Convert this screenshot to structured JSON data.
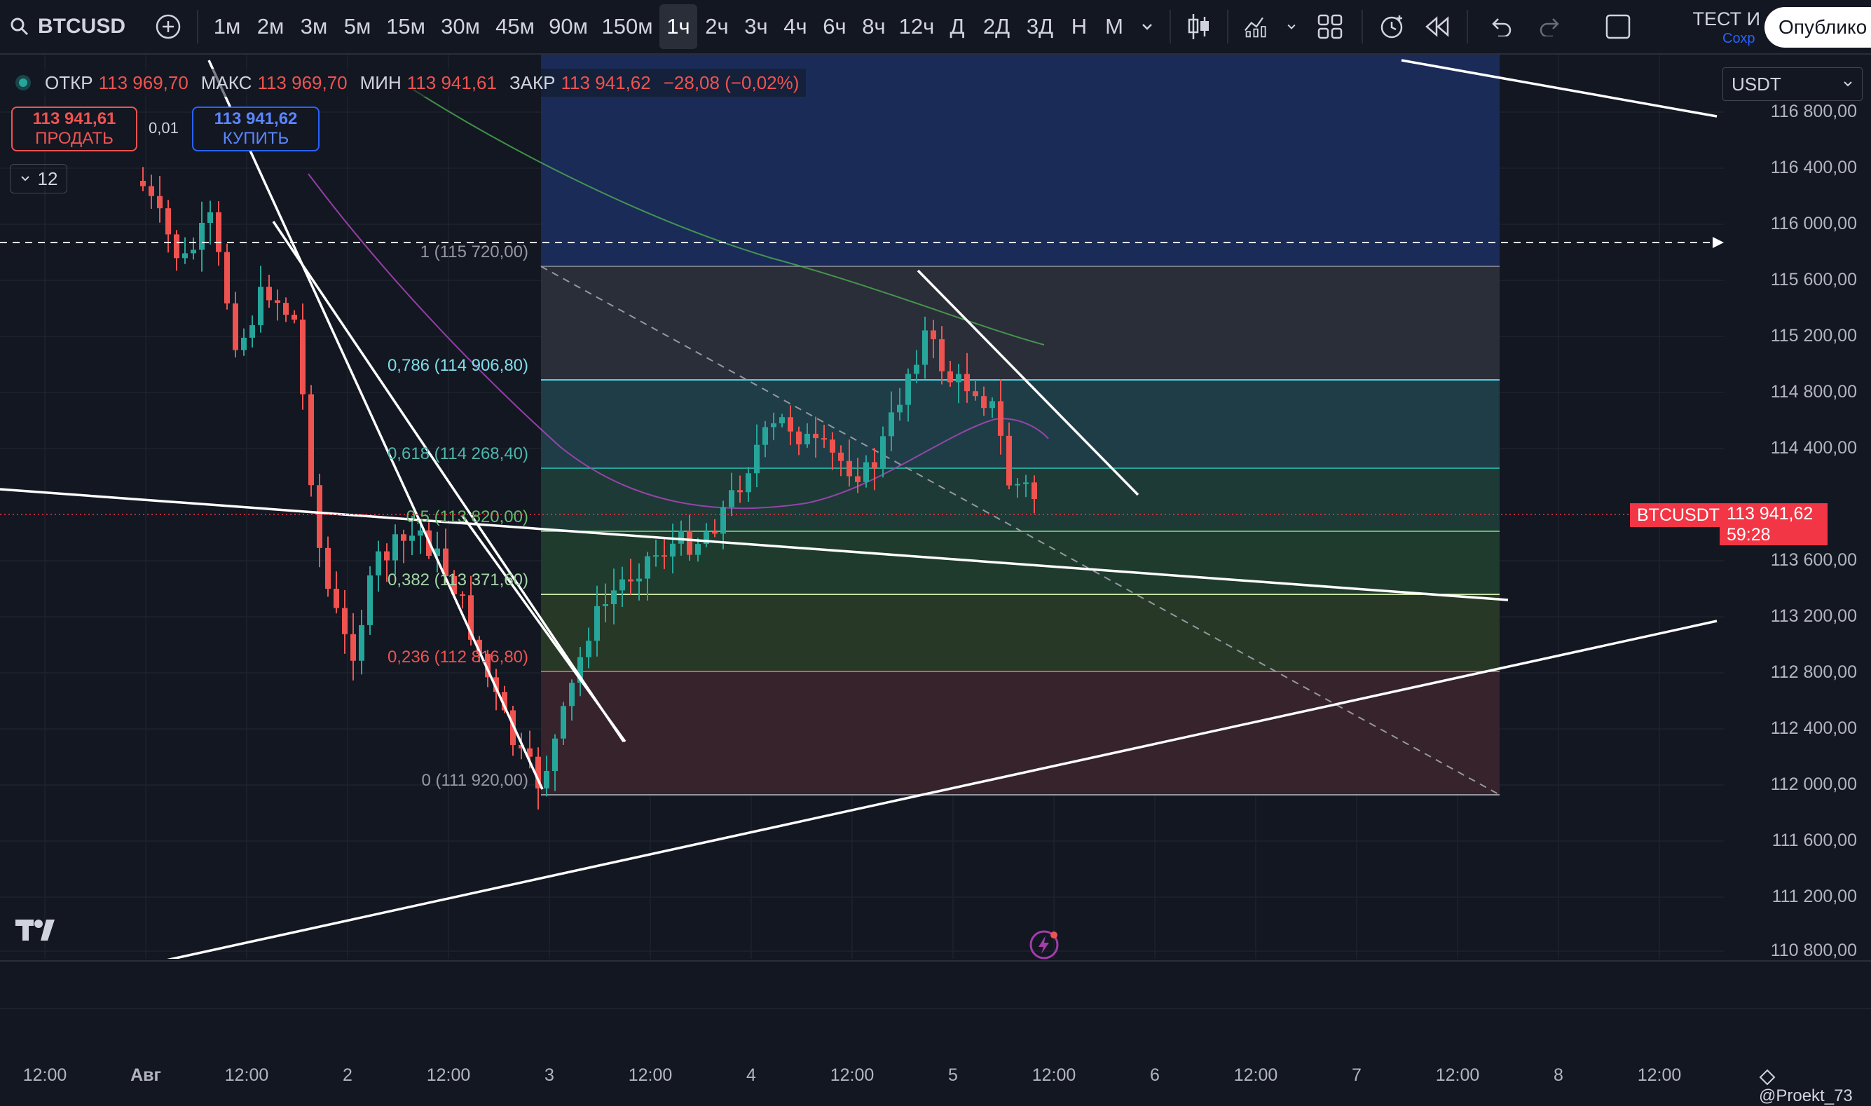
{
  "toolbar": {
    "symbol": "BTCUSD",
    "intervals": [
      "1м",
      "2м",
      "3м",
      "5м",
      "15м",
      "30м",
      "45м",
      "90м",
      "150м",
      "1ч",
      "2ч",
      "3ч",
      "4ч",
      "6ч",
      "8ч",
      "12ч",
      "Д",
      "2Д",
      "3Д",
      "Н",
      "М"
    ],
    "active_interval": "1ч",
    "layout_name": "ТЕСТ И",
    "save_status": "Сохр",
    "publish_label": "Опублико"
  },
  "legend": {
    "open_label": "ОТКР",
    "open_value": "113 969,70",
    "high_label": "МАКС",
    "high_value": "113 969,70",
    "low_label": "МИН",
    "low_value": "113 941,61",
    "close_label": "ЗАКР",
    "close_value": "113 941,62",
    "change": "−28,08 (−0,02%)"
  },
  "trade": {
    "sell_price": "113 941,61",
    "sell_label": "ПРОДАТЬ",
    "spread": "0,01",
    "buy_price": "113 941,62",
    "buy_label": "КУПИТЬ"
  },
  "indicators_count": "12",
  "currency": "USDT",
  "price_axis": [
    "116 800,00",
    "116 400,00",
    "116 000,00",
    "115 600,00",
    "115 200,00",
    "114 800,00",
    "114 400,00",
    "113 600,00",
    "113 200,00",
    "112 800,00",
    "112 400,00",
    "112 000,00",
    "111 600,00",
    "111 200,00",
    "110 800,00"
  ],
  "current_price": {
    "symbol": "BTCUSDT",
    "value": "113 941,62",
    "countdown": "59:28"
  },
  "fib_levels": [
    {
      "label": "1 (115 720,00)",
      "color": "#9598a1"
    },
    {
      "label": "0,786 (114 906,80)",
      "color": "#80deea"
    },
    {
      "label": "0,618 (114 268,40)",
      "color": "#4db6ac"
    },
    {
      "label": "0,5 (113 820,00)",
      "color": "#66bb6a"
    },
    {
      "label": "0,382 (113 371,60)",
      "color": "#a5d6a7"
    },
    {
      "label": "0,236 (112 816,80)",
      "color": "#ef5350"
    },
    {
      "label": "0 (111 920,00)",
      "color": "#9598a1"
    }
  ],
  "time_axis": [
    "12:00",
    "Авг",
    "12:00",
    "2",
    "12:00",
    "3",
    "12:00",
    "4",
    "12:00",
    "5",
    "12:00",
    "6",
    "12:00",
    "7",
    "12:00",
    "8",
    "12:00"
  ],
  "watermark": "@Proekt_73",
  "logo": "TV",
  "colors": {
    "up": "#26a69a",
    "down": "#ef5350",
    "background": "#131722"
  }
}
